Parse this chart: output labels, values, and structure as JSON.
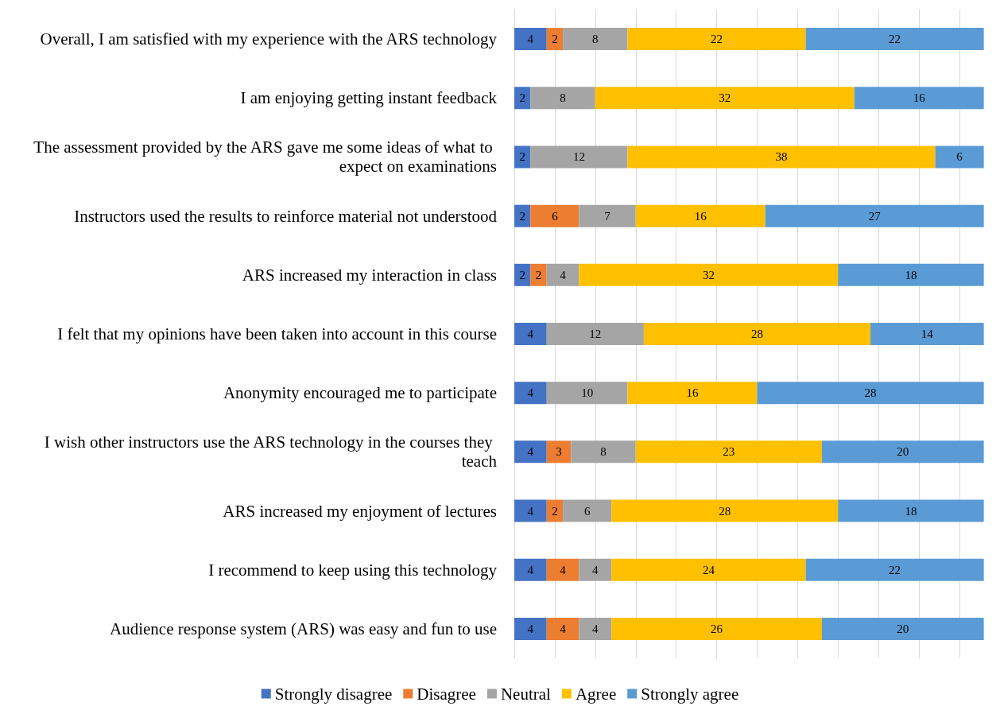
{
  "chart_data": {
    "type": "bar",
    "orientation": "horizontal",
    "stacked": true,
    "categories": [
      "Overall, I am satisfied with my experience with the ARS technology",
      "I am enjoying getting instant feedback",
      "The assessment provided by the ARS gave me some ideas of what to expect on examinations",
      "Instructors used the results to reinforce material not understood",
      "ARS increased my interaction in class",
      "I felt that my opinions have been taken into account in this course",
      "Anonymity encouraged me to participate",
      "I wish other instructors use the ARS technology in the courses they teach",
      "ARS increased my enjoyment of lectures",
      "I recommend to keep using this technology",
      "Audience response system (ARS) was easy and fun to use"
    ],
    "series": [
      {
        "name": "Strongly disagree",
        "color": "#4472c4",
        "values": [
          4,
          2,
          2,
          2,
          2,
          4,
          4,
          4,
          4,
          4,
          4
        ]
      },
      {
        "name": "Disagree",
        "color": "#ed7d31",
        "values": [
          2,
          null,
          null,
          6,
          2,
          null,
          null,
          3,
          2,
          4,
          4
        ]
      },
      {
        "name": "Neutral",
        "color": "#a5a5a5",
        "values": [
          8,
          8,
          12,
          7,
          4,
          12,
          10,
          8,
          6,
          4,
          4
        ]
      },
      {
        "name": "Agree",
        "color": "#ffc000",
        "values": [
          22,
          32,
          38,
          16,
          32,
          28,
          16,
          23,
          28,
          24,
          26
        ]
      },
      {
        "name": "Strongly agree",
        "color": "#5b9bd5",
        "values": [
          22,
          16,
          6,
          27,
          18,
          14,
          28,
          20,
          18,
          22,
          20
        ]
      }
    ],
    "tick_labels": "y",
    "grid": "x",
    "legend": "bottom",
    "data_labels": true
  }
}
